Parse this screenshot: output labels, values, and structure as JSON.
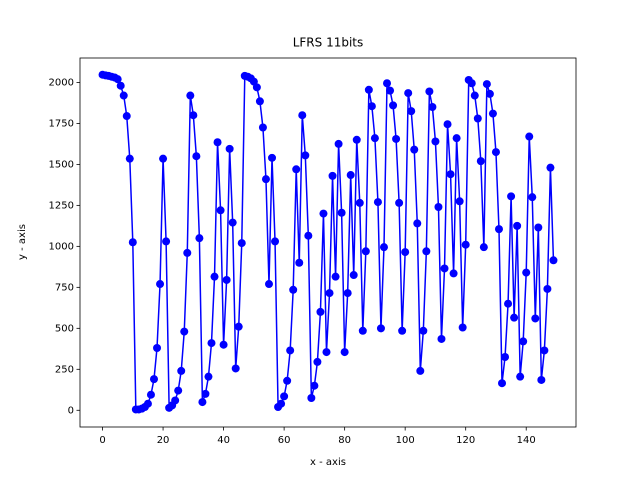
{
  "chart_data": {
    "type": "line",
    "title": "LFRS 11bits",
    "x_label": "x - axis",
    "y_label": "y - axis",
    "x": [
      0,
      1,
      2,
      3,
      4,
      5,
      6,
      7,
      8,
      9,
      10,
      11,
      12,
      13,
      14,
      15,
      16,
      17,
      18,
      19,
      20,
      21,
      22,
      23,
      24,
      25,
      26,
      27,
      28,
      29,
      30,
      31,
      32,
      33,
      34,
      35,
      36,
      37,
      38,
      39,
      40,
      41,
      42,
      43,
      44,
      45,
      46,
      47,
      48,
      49,
      50,
      51,
      52,
      53,
      54,
      55,
      56,
      57,
      58,
      59,
      60,
      61,
      62,
      63,
      64,
      65,
      66,
      67,
      68,
      69,
      70,
      71,
      72,
      73,
      74,
      75,
      76,
      77,
      78,
      79,
      80,
      81,
      82,
      83,
      84,
      85,
      86,
      87,
      88,
      89,
      90,
      91,
      92,
      93,
      94,
      95,
      96,
      97,
      98,
      99,
      100,
      101,
      102,
      103,
      104,
      105,
      106,
      107,
      108,
      109,
      110,
      111,
      112,
      113,
      114,
      115,
      116,
      117,
      118,
      119,
      120,
      121,
      122,
      123,
      124,
      125,
      126,
      127,
      128,
      129,
      130,
      131,
      132,
      133,
      134,
      135,
      136,
      137,
      138,
      139,
      140,
      141,
      142,
      143,
      144,
      145,
      146,
      147,
      148,
      149
    ],
    "series": [
      {
        "color": "#0000ff",
        "values": [
          2047,
          2043,
          2040,
          2035,
          2030,
          2020,
          1980,
          1920,
          1795,
          1535,
          1025,
          5,
          5,
          10,
          20,
          40,
          95,
          190,
          380,
          770,
          1535,
          1030,
          15,
          30,
          60,
          120,
          240,
          480,
          960,
          1920,
          1800,
          1550,
          1050,
          50,
          100,
          205,
          410,
          815,
          1635,
          1220,
          400,
          795,
          1595,
          1145,
          255,
          510,
          1020,
          2040,
          2035,
          2025,
          2005,
          1970,
          1885,
          1725,
          1410,
          770,
          1540,
          1030,
          20,
          40,
          85,
          180,
          365,
          735,
          1470,
          900,
          1800,
          1555,
          1065,
          75,
          150,
          295,
          600,
          1200,
          355,
          715,
          1430,
          815,
          1625,
          1205,
          355,
          715,
          1435,
          825,
          1650,
          1265,
          485,
          970,
          1955,
          1855,
          1660,
          1270,
          500,
          995,
          1995,
          1950,
          1860,
          1655,
          1265,
          485,
          965,
          1935,
          1825,
          1590,
          1140,
          240,
          485,
          970,
          1945,
          1850,
          1640,
          1240,
          435,
          865,
          1745,
          1440,
          835,
          1660,
          1275,
          505,
          1010,
          2015,
          1995,
          1920,
          1780,
          1520,
          995,
          1990,
          1930,
          1810,
          1575,
          1105,
          165,
          325,
          650,
          1305,
          565,
          1125,
          205,
          420,
          840,
          1670,
          1300,
          560,
          1115,
          185,
          365,
          740,
          1480,
          915
        ]
      }
    ],
    "xlim": [
      -7.45,
      156.45
    ],
    "ylim": [
      -102,
      2149
    ],
    "xticks": [
      0,
      20,
      40,
      60,
      80,
      100,
      120,
      140
    ],
    "yticks": [
      0,
      250,
      500,
      750,
      1000,
      1250,
      1500,
      1750,
      2000
    ],
    "markers": true
  }
}
